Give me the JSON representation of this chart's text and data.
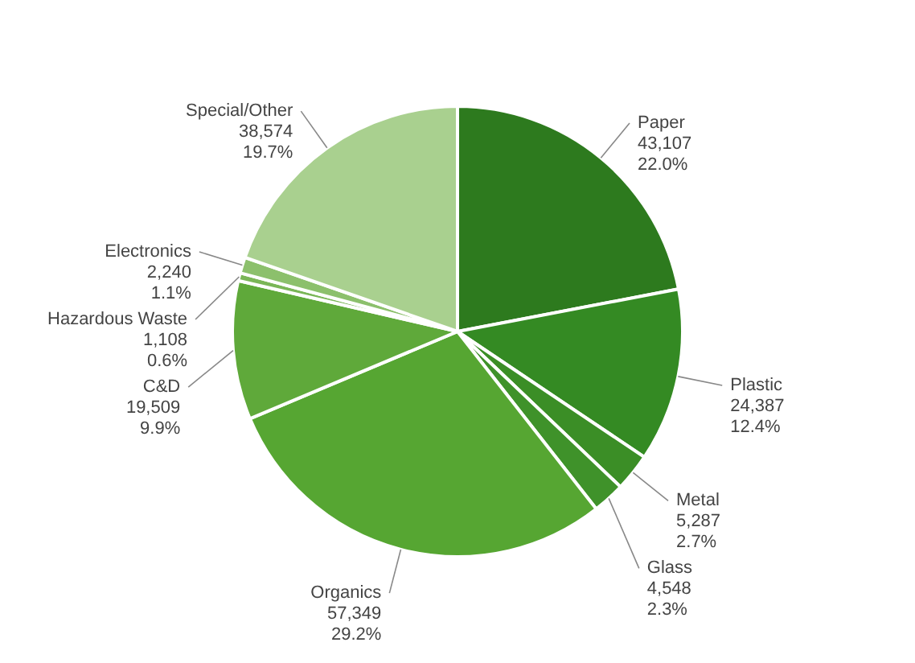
{
  "chart_data": {
    "type": "pie",
    "categories": [
      "Paper",
      "Plastic",
      "Metal",
      "Glass",
      "Organics",
      "C&D",
      "Hazardous Waste",
      "Electronics",
      "Special/Other"
    ],
    "values": [
      43107,
      24387,
      5287,
      4548,
      57349,
      19509,
      1108,
      2240,
      38574
    ],
    "value_labels": [
      "43,107\n22.0%",
      "24,387\n12.4%",
      "5,287\n2.7%",
      "4,548\n2.3%",
      "57,349\n29.2%",
      "19,509\n9.9%",
      "1,108\n0.6%",
      "2,240\n1.1%",
      "38,574\n19.7%"
    ],
    "colors": [
      "#2d7a1e",
      "#348a23",
      "#3b8e26",
      "#3f922a",
      "#56a632",
      "#5fa93a",
      "#7ab657",
      "#8cc06c",
      "#a9d08f"
    ]
  }
}
